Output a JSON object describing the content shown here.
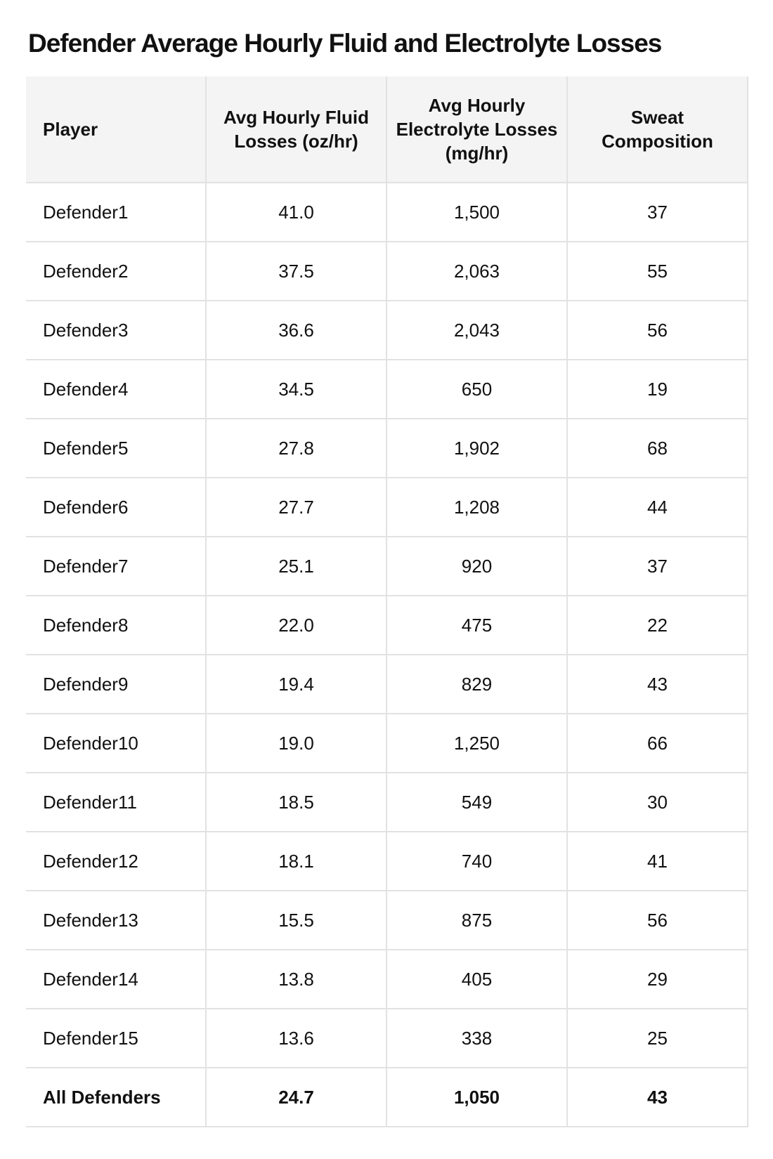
{
  "title": "Defender Average Hourly Fluid and Electrolyte Losses",
  "table": {
    "headers": {
      "player": "Player",
      "fluid": "Avg Hourly Fluid Losses (oz/hr)",
      "electrolyte": "Avg Hourly Electrolyte Losses (mg/hr)",
      "sweat": "Sweat Composition"
    },
    "rows": [
      {
        "player": "Defender1",
        "fluid": "41.0",
        "electrolyte": "1,500",
        "sweat": "37"
      },
      {
        "player": "Defender2",
        "fluid": "37.5",
        "electrolyte": "2,063",
        "sweat": "55"
      },
      {
        "player": "Defender3",
        "fluid": "36.6",
        "electrolyte": "2,043",
        "sweat": "56"
      },
      {
        "player": "Defender4",
        "fluid": "34.5",
        "electrolyte": "650",
        "sweat": "19"
      },
      {
        "player": "Defender5",
        "fluid": "27.8",
        "electrolyte": "1,902",
        "sweat": "68"
      },
      {
        "player": "Defender6",
        "fluid": "27.7",
        "electrolyte": "1,208",
        "sweat": "44"
      },
      {
        "player": "Defender7",
        "fluid": "25.1",
        "electrolyte": "920",
        "sweat": "37"
      },
      {
        "player": "Defender8",
        "fluid": "22.0",
        "electrolyte": "475",
        "sweat": "22"
      },
      {
        "player": "Defender9",
        "fluid": "19.4",
        "electrolyte": "829",
        "sweat": "43"
      },
      {
        "player": "Defender10",
        "fluid": "19.0",
        "electrolyte": "1,250",
        "sweat": "66"
      },
      {
        "player": "Defender11",
        "fluid": "18.5",
        "electrolyte": "549",
        "sweat": "30"
      },
      {
        "player": "Defender12",
        "fluid": "18.1",
        "electrolyte": "740",
        "sweat": "41"
      },
      {
        "player": "Defender13",
        "fluid": "15.5",
        "electrolyte": "875",
        "sweat": "56"
      },
      {
        "player": "Defender14",
        "fluid": "13.8",
        "electrolyte": "405",
        "sweat": "29"
      },
      {
        "player": "Defender15",
        "fluid": "13.6",
        "electrolyte": "338",
        "sweat": "25"
      }
    ],
    "total": {
      "player": "All Defenders",
      "fluid": "24.7",
      "electrolyte": "1,050",
      "sweat": "43"
    }
  }
}
